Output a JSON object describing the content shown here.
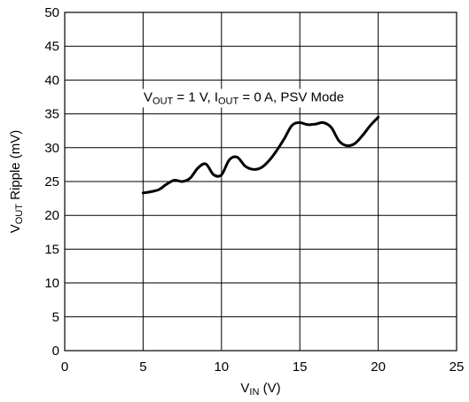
{
  "chart_data": {
    "type": "line",
    "title": "",
    "xlabel": {
      "main": "V",
      "sub": "IN",
      "suffix": " (V)"
    },
    "ylabel": {
      "main": "V",
      "sub": "OUT",
      "suffix": " Ripple (mV)"
    },
    "xlim": [
      0,
      25
    ],
    "ylim": [
      0,
      50
    ],
    "x_ticks": [
      0,
      5,
      10,
      15,
      20,
      25
    ],
    "y_ticks": [
      0,
      5,
      10,
      15,
      20,
      25,
      30,
      35,
      40,
      45,
      50
    ],
    "grid": true,
    "legend": "none",
    "annotation": [
      {
        "t": "V",
        "sub": false
      },
      {
        "t": "OUT",
        "sub": true
      },
      {
        "t": " = 1 V, I",
        "sub": false
      },
      {
        "t": "OUT",
        "sub": true
      },
      {
        "t": " = 0 A, PSV Mode",
        "sub": false
      }
    ],
    "line_color": "#000000",
    "series": [
      {
        "x": [
          5.0,
          5.5,
          6.0,
          6.5,
          7.0,
          7.5,
          8.0,
          8.5,
          9.0,
          9.5,
          10.0,
          10.5,
          11.0,
          11.5,
          12.0,
          12.5,
          13.0,
          13.5,
          14.0,
          14.5,
          15.0,
          15.5,
          16.0,
          16.5,
          17.0,
          17.5,
          18.0,
          18.5,
          19.0,
          19.5,
          20.0
        ],
        "y": [
          23.3,
          23.5,
          23.8,
          24.6,
          25.2,
          25.0,
          25.5,
          27.0,
          27.6,
          26.0,
          26.0,
          28.2,
          28.6,
          27.3,
          26.8,
          27.0,
          28.0,
          29.5,
          31.3,
          33.3,
          33.7,
          33.4,
          33.5,
          33.7,
          33.0,
          31.0,
          30.3,
          30.6,
          31.8,
          33.3,
          34.5
        ]
      }
    ]
  }
}
